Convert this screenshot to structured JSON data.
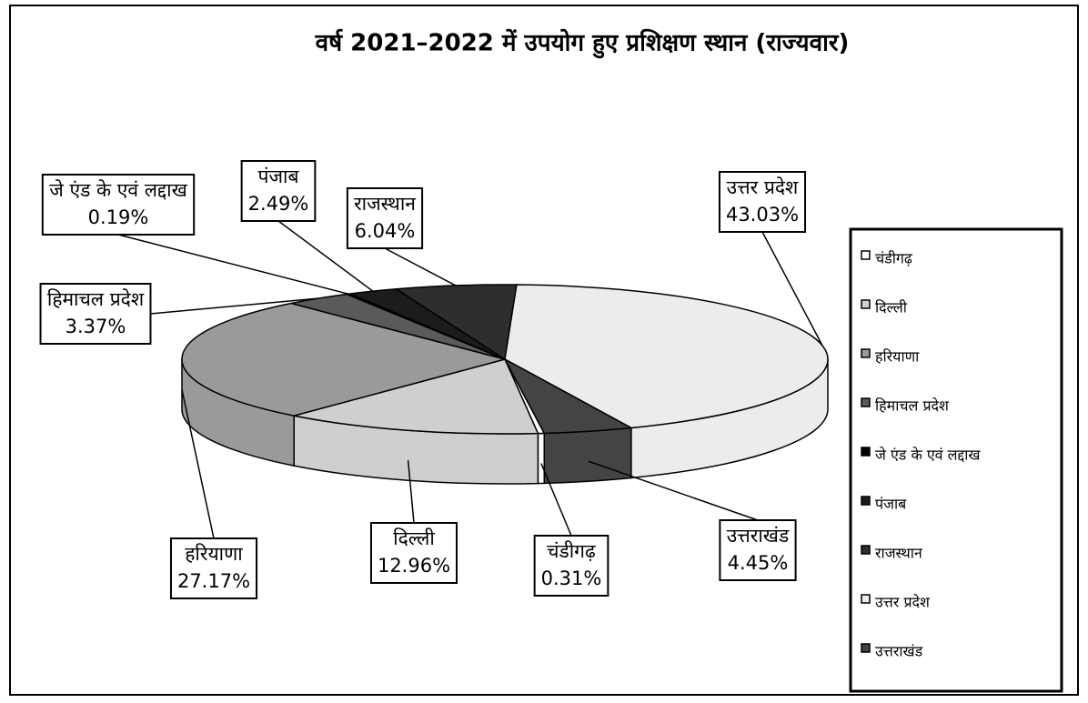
{
  "chart_data": {
    "type": "pie",
    "title": "वर्ष 2021–2022 में उपयोग हुए प्रशिक्षण स्थान (राज्यवार)",
    "categories": [
      "चंडीगढ़",
      "दिल्ली",
      "हरियाणा",
      "हिमाचल प्रदेश",
      "जे एंड के एवं लद्दाख",
      "पंजाब",
      "राजस्थान",
      "उत्तर प्रदेश",
      "उत्तराखंड"
    ],
    "values": [
      0.31,
      12.96,
      27.17,
      3.37,
      0.19,
      2.49,
      6.04,
      43.03,
      4.45
    ],
    "value_labels": [
      "0.31%",
      "12.96%",
      "27.17%",
      "3.37%",
      "0.19%",
      "2.49%",
      "6.04%",
      "43.03%",
      "4.45%"
    ],
    "colors": [
      "#ffffff",
      "#cfcfcf",
      "#9a9a9a",
      "#5a5a5a",
      "#000000",
      "#1c1c1c",
      "#2e2e2e",
      "#ececec",
      "#444444"
    ],
    "legend": "right"
  }
}
